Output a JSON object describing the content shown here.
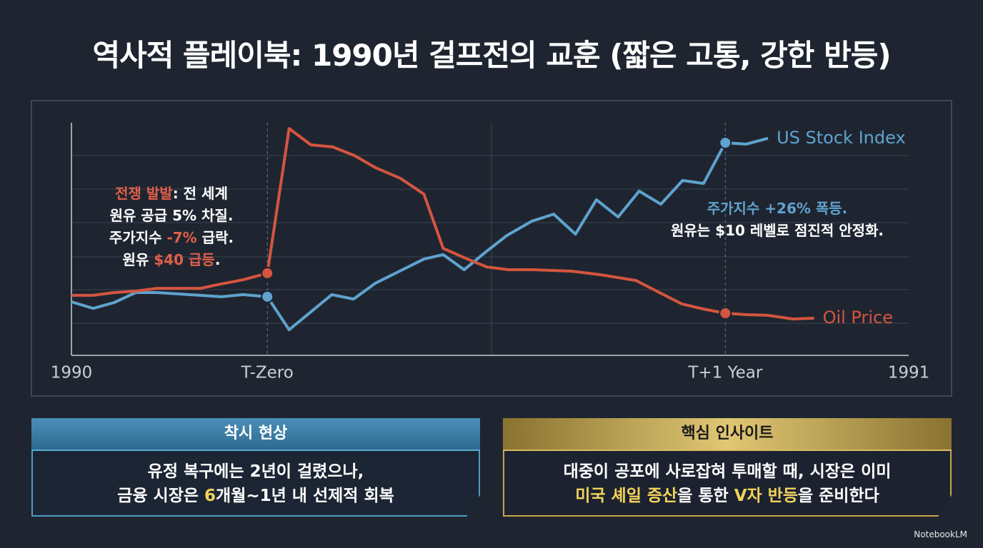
{
  "title": "역사적 플레이북: 1990년 걸프전의 교훈 (짧은 고통, 강한 반등)",
  "chart_data": {
    "type": "line",
    "xlim": [
      0,
      100
    ],
    "ylim": [
      0,
      100
    ],
    "xticks": [
      {
        "value": 0,
        "label": "1990"
      },
      {
        "value": 23.4,
        "label": "T-Zero"
      },
      {
        "value": 78.1,
        "label": "T+1 Year"
      },
      {
        "value": 100,
        "label": "1991"
      }
    ],
    "series": [
      {
        "name": "US Stock Index",
        "color": "#5fa3cf",
        "x": [
          0,
          2.6,
          5.1,
          7.7,
          10.2,
          12.8,
          15.4,
          17.9,
          20.5,
          23.4,
          26.0,
          28.6,
          31.1,
          33.7,
          36.3,
          39.2,
          42.1,
          44.4,
          46.9,
          49.5,
          52.0,
          55.0,
          57.6,
          60.2,
          62.7,
          65.3,
          67.8,
          70.4,
          73.0,
          75.5,
          78.1,
          80.6,
          83.2
        ],
        "values": [
          23.0,
          20.2,
          22.7,
          27.0,
          27.0,
          26.4,
          25.8,
          25.2,
          26.1,
          25.2,
          11.0,
          18.7,
          26.1,
          24.2,
          31.0,
          36.2,
          41.4,
          43.3,
          36.8,
          44.5,
          51.5,
          57.7,
          60.7,
          52.1,
          66.9,
          59.5,
          70.6,
          65.0,
          75.2,
          73.9,
          91.4,
          90.8,
          93.3
        ]
      },
      {
        "name": "Oil Price",
        "color": "#d4553f",
        "x": [
          0,
          2.6,
          5.1,
          7.7,
          10.2,
          12.8,
          15.4,
          17.9,
          20.5,
          23.4,
          26.0,
          28.6,
          31.2,
          33.8,
          36.3,
          39.3,
          42.1,
          44.4,
          47.1,
          49.6,
          52.2,
          55.2,
          59.7,
          63.1,
          67.4,
          69.9,
          72.9,
          75.5,
          78.1,
          80.6,
          83.2,
          86.2,
          88.7
        ],
        "values": [
          25.8,
          25.8,
          27.0,
          27.6,
          28.8,
          28.8,
          28.8,
          30.7,
          32.5,
          35.3,
          97.5,
          90.5,
          89.6,
          85.9,
          80.7,
          76.1,
          69.3,
          46.0,
          41.7,
          38.0,
          36.8,
          36.8,
          36.2,
          34.7,
          32.2,
          27.6,
          22.1,
          19.9,
          18.1,
          17.5,
          17.2,
          15.6,
          16.0
        ]
      }
    ],
    "annotations": [
      {
        "lines": [
          [
            {
              "text": "전쟁 발발",
              "color": "#e0604a"
            },
            {
              "text": ": 전 세계"
            }
          ],
          [
            {
              "text": "원유 공급 5% 차질."
            }
          ],
          [
            {
              "text": "주가지수 "
            },
            {
              "text": "-7%",
              "color": "#e0604a"
            },
            {
              "text": " 급락."
            }
          ],
          [
            {
              "text": "원유 "
            },
            {
              "text": "$40 급등",
              "color": "#e0604a"
            },
            {
              "text": "."
            }
          ]
        ]
      },
      {
        "lines": [
          [
            {
              "text": "주가지수 +26% 폭등.",
              "color": "#5fa3cf"
            }
          ],
          [
            {
              "text": "원유는 $10 레벨로 점진적 안정화."
            }
          ]
        ]
      }
    ]
  },
  "cards": [
    {
      "title": "착시 현상",
      "lines": [
        [
          {
            "text": "유정 복구에는 2년이 걸렸으나,"
          }
        ],
        [
          {
            "text": "금융 시장은 "
          },
          {
            "text": "6",
            "color": "#f2d35b"
          },
          {
            "text": "개월~1년 내 선제적 회복"
          }
        ]
      ]
    },
    {
      "title": "핵심 인사이트",
      "lines": [
        [
          {
            "text": "대중이 공포에 사로잡혀 투매할 때, 시장은 이미"
          }
        ],
        [
          {
            "text": "미국 셰일 증산",
            "color": "#f2d35b"
          },
          {
            "text": "을 통한 "
          },
          {
            "text": "V자 반등",
            "color": "#f2d35b"
          },
          {
            "text": "을 준비한다"
          }
        ]
      ]
    }
  ],
  "footer": "NotebookLM"
}
